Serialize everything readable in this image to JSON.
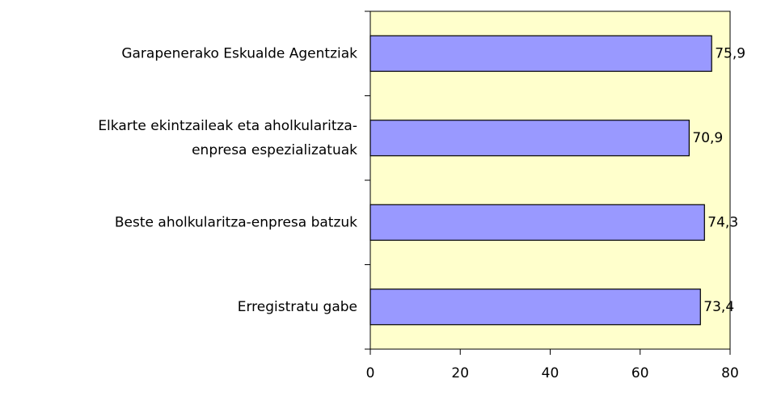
{
  "chart_data": {
    "type": "bar",
    "orientation": "horizontal",
    "categories": [
      "Garapenerako Eskualde Agentziak",
      "Elkarte ekintzaileak eta aholkularitza-\nenpresa espezializatuak",
      "Beste aholkularitza-enpresa batzuk",
      "Erregistratu gabe"
    ],
    "values": [
      75.9,
      70.9,
      74.3,
      73.4
    ],
    "value_labels": [
      "75,9",
      "70,9",
      "74,3",
      "73,4"
    ],
    "color": "#9999ff",
    "background": "#ffffcc",
    "xlim": [
      0,
      80
    ],
    "xticks": [
      0,
      20,
      40,
      60,
      80
    ],
    "grid": false
  }
}
